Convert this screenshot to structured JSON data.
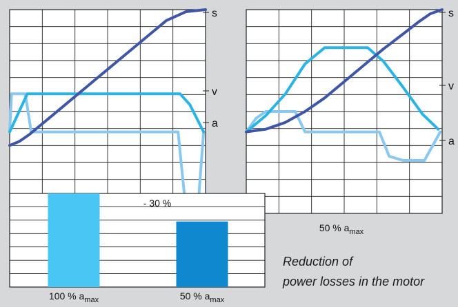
{
  "chart_data": [
    {
      "type": "line",
      "xlabel": "100 % a",
      "xlabel_sub": "max",
      "grid": true,
      "series": [
        {
          "name": "s",
          "color": "#3f55a6",
          "points": [
            [
              0,
              0.0
            ],
            [
              0.05,
              0.03
            ],
            [
              0.1,
              0.08
            ],
            [
              0.2,
              0.2
            ],
            [
              0.3,
              0.32
            ],
            [
              0.4,
              0.44
            ],
            [
              0.5,
              0.56
            ],
            [
              0.6,
              0.68
            ],
            [
              0.7,
              0.8
            ],
            [
              0.8,
              0.92
            ],
            [
              0.9,
              0.985
            ],
            [
              1.0,
              1.0
            ]
          ]
        },
        {
          "name": "v",
          "color": "#2bb4e3",
          "points": [
            [
              0,
              0.1
            ],
            [
              0.09,
              0.38
            ],
            [
              0.2,
              0.38
            ],
            [
              0.4,
              0.38
            ],
            [
              0.6,
              0.38
            ],
            [
              0.87,
              0.38
            ],
            [
              0.92,
              0.3
            ],
            [
              0.99,
              0.1
            ]
          ]
        },
        {
          "name": "a",
          "color": "#8ac8ef",
          "points": [
            [
              0,
              0.1
            ],
            [
              0.01,
              0.38
            ],
            [
              0.03,
              0.38
            ],
            [
              0.08,
              0.38
            ],
            [
              0.11,
              0.1
            ],
            [
              0.4,
              0.1
            ],
            [
              0.7,
              0.1
            ],
            [
              0.86,
              0.1
            ],
            [
              0.9,
              -0.48
            ],
            [
              0.96,
              -0.48
            ],
            [
              0.99,
              0.1
            ]
          ]
        }
      ]
    },
    {
      "type": "line",
      "xlabel": "50 % a",
      "xlabel_sub": "max",
      "grid": true,
      "series": [
        {
          "name": "s",
          "color": "#3f55a6",
          "points": [
            [
              0,
              0.1
            ],
            [
              0.1,
              0.12
            ],
            [
              0.2,
              0.17
            ],
            [
              0.3,
              0.25
            ],
            [
              0.4,
              0.35
            ],
            [
              0.5,
              0.47
            ],
            [
              0.6,
              0.59
            ],
            [
              0.7,
              0.71
            ],
            [
              0.8,
              0.82
            ],
            [
              0.88,
              0.91
            ],
            [
              0.94,
              0.97
            ],
            [
              1.0,
              1.0
            ]
          ]
        },
        {
          "name": "v",
          "color": "#2bb4e3",
          "points": [
            [
              0,
              0.1
            ],
            [
              0.1,
              0.22
            ],
            [
              0.2,
              0.38
            ],
            [
              0.3,
              0.6
            ],
            [
              0.4,
              0.72
            ],
            [
              0.62,
              0.72
            ],
            [
              0.7,
              0.62
            ],
            [
              0.8,
              0.43
            ],
            [
              0.9,
              0.23
            ],
            [
              0.98,
              0.12
            ]
          ]
        },
        {
          "name": "a",
          "color": "#8ac8ef",
          "points": [
            [
              0,
              0.1
            ],
            [
              0.05,
              0.2
            ],
            [
              0.1,
              0.25
            ],
            [
              0.25,
              0.25
            ],
            [
              0.3,
              0.1
            ],
            [
              0.4,
              0.1
            ],
            [
              0.6,
              0.1
            ],
            [
              0.68,
              0.1
            ],
            [
              0.73,
              -0.08
            ],
            [
              0.8,
              -0.11
            ],
            [
              0.91,
              -0.11
            ],
            [
              0.96,
              0.02
            ],
            [
              0.99,
              0.1
            ]
          ]
        }
      ]
    },
    {
      "type": "bar",
      "categories": [
        {
          "main": "100 % a",
          "sub": "max"
        },
        {
          "main": "50 % a",
          "sub": "max"
        }
      ],
      "values": [
        100,
        70
      ],
      "colors": [
        "#49c6f4",
        "#0f88cf"
      ],
      "annotation": "- 30 %",
      "grid": true
    }
  ],
  "caption": {
    "line1": "Reduction of",
    "line2": "power losses in the motor"
  }
}
